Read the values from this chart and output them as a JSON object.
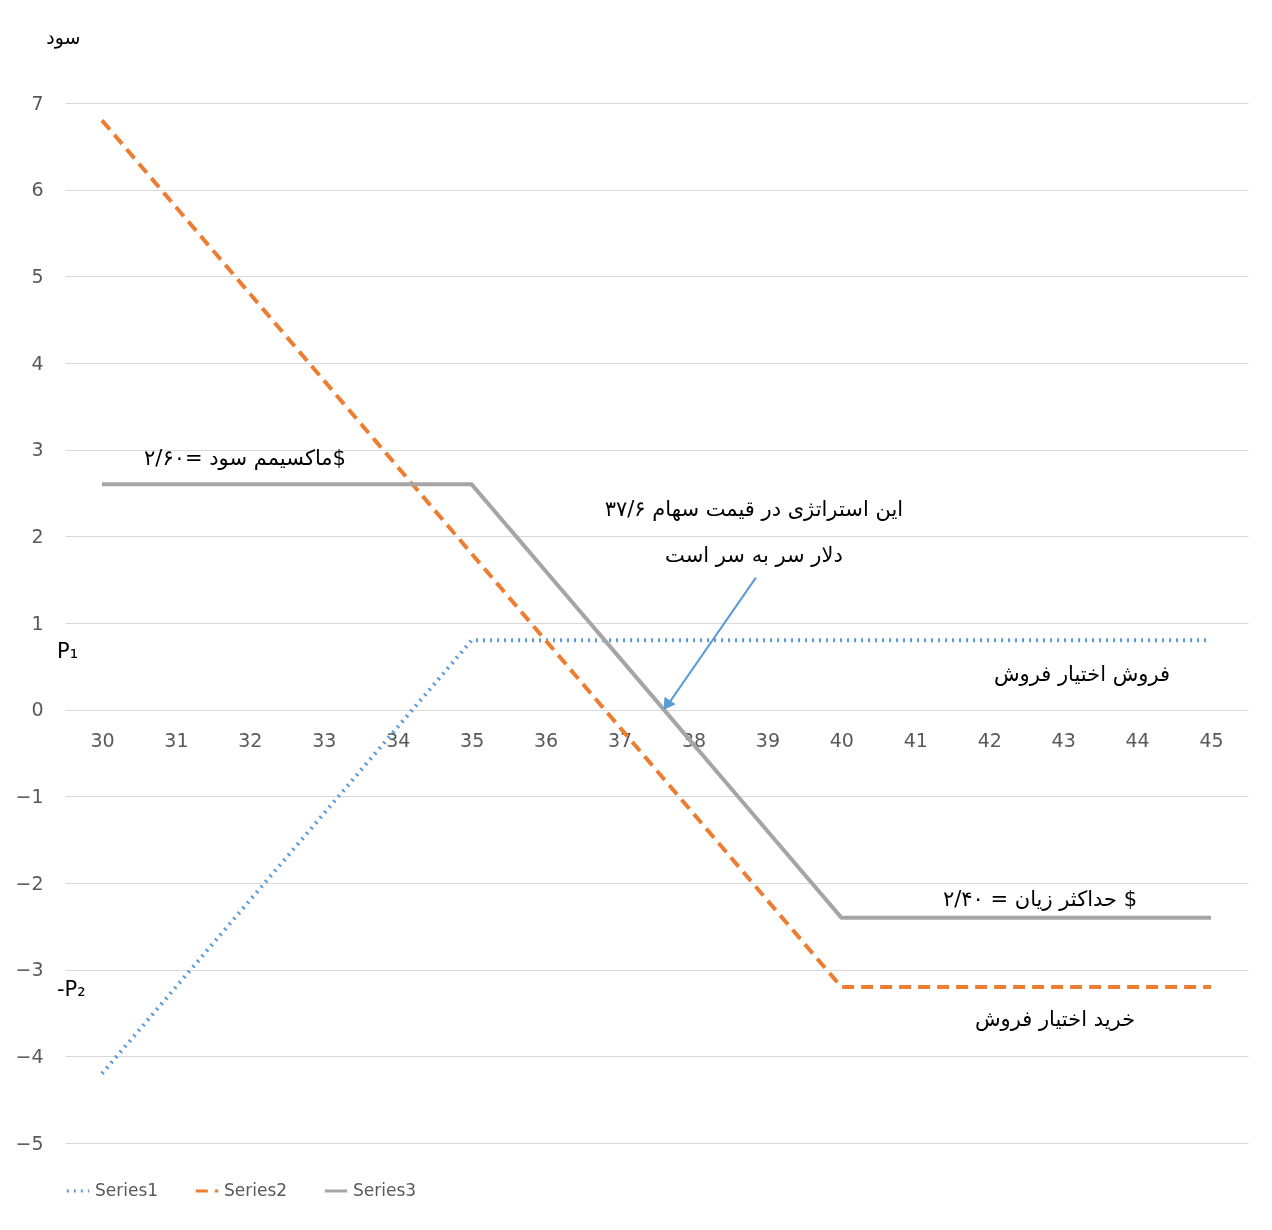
{
  "chart_data": {
    "type": "line",
    "ylabel": "سود",
    "x": [
      30,
      31,
      32,
      33,
      34,
      35,
      36,
      37,
      38,
      39,
      40,
      41,
      42,
      43,
      44,
      45
    ],
    "series": [
      {
        "name": "Series1",
        "color": "#5b9bd5",
        "line_style": "dotted",
        "values": [
          -4.2,
          -3.2,
          -2.2,
          -1.2,
          -0.2,
          0.8,
          0.8,
          0.8,
          0.8,
          0.8,
          0.8,
          0.8,
          0.8,
          0.8,
          0.8,
          0.8
        ]
      },
      {
        "name": "Series2",
        "color": "#ed7d31",
        "line_style": "dashed",
        "values": [
          6.8,
          5.8,
          4.8,
          3.8,
          2.8,
          1.8,
          0.8,
          -0.2,
          -1.2,
          -2.2,
          -3.2,
          -3.2,
          -3.2,
          -3.2,
          -3.2,
          -3.2
        ]
      },
      {
        "name": "Series3",
        "color": "#a5a5a5",
        "line_style": "solid",
        "values": [
          2.6,
          2.6,
          2.6,
          2.6,
          2.6,
          2.6,
          1.6,
          0.6,
          -0.4,
          -1.4,
          -2.4,
          -2.4,
          -2.4,
          -2.4,
          -2.4,
          -2.4
        ]
      }
    ],
    "xlim": [
      29.5,
      45.5
    ],
    "xticks": [
      30,
      31,
      32,
      33,
      34,
      35,
      36,
      37,
      38,
      39,
      40,
      41,
      42,
      43,
      44,
      45
    ],
    "ylim": [
      -5,
      7
    ],
    "yticks": [
      -5,
      -4,
      -3,
      -2,
      -1,
      0,
      1,
      2,
      3,
      4,
      5,
      6,
      7
    ],
    "grid": "y",
    "legend": "bottom",
    "marker": "none",
    "annotations": [
      "ماکسیمم سود =۲/۶۰$",
      {
        "text": "این استراتژی در قیمت سهام ۳۷/۶\nدلار سر به سر است",
        "x": 37.6,
        "y": 0
      },
      "فروش اختیار فروش",
      "حداکثر زیان = ۲/۴۰ $",
      "خرید اختیار فروش",
      "P₁",
      "-P₂"
    ]
  }
}
